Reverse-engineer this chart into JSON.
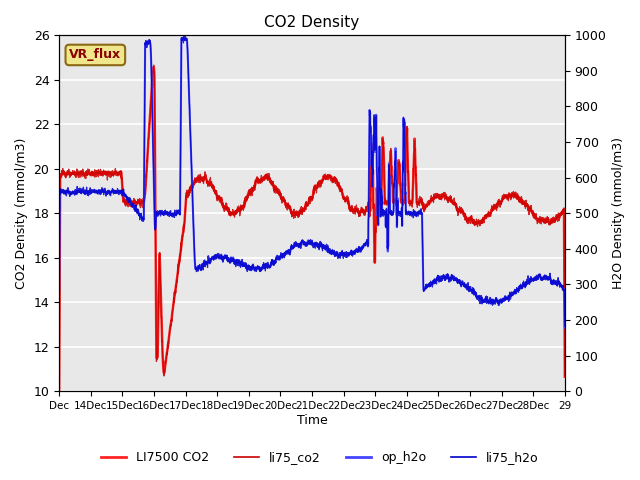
{
  "title": "CO2 Density",
  "ylabel_left": "CO2 Density (mmol/m3)",
  "ylabel_right": "H2O Density (mmol/m3)",
  "xlabel": "Time",
  "ylim_left": [
    10,
    26
  ],
  "ylim_right": [
    0,
    1000
  ],
  "yticks_left": [
    10,
    12,
    14,
    16,
    18,
    20,
    22,
    24,
    26
  ],
  "yticks_right": [
    0,
    100,
    200,
    300,
    400,
    500,
    600,
    700,
    800,
    900,
    1000
  ],
  "xtick_labels": [
    "Dec",
    "14Dec",
    "15Dec",
    "16Dec",
    "17Dec",
    "18Dec",
    "19Dec",
    "20Dec",
    "21Dec",
    "22Dec",
    "23Dec",
    "24Dec",
    "25Dec",
    "26Dec",
    "27Dec",
    "28Dec",
    "29"
  ],
  "annotation_text": "VR_flux",
  "annotation_bg": "#f0e68c",
  "annotation_border": "#8b6914",
  "legend_entries": [
    "LI7500 CO2",
    "li75_co2",
    "op_h2o",
    "li75_h2o"
  ],
  "legend_colors": [
    "#ff2222",
    "#cc0000",
    "#4444ff",
    "#0000cc"
  ],
  "bg_color": "#e8e8e8",
  "grid_color": "#ffffff",
  "line_colors": {
    "LI7500_CO2": "#ff2222",
    "li75_co2": "#cc0000",
    "op_h2o": "#4444ff",
    "li75_h2o": "#0000cc"
  }
}
